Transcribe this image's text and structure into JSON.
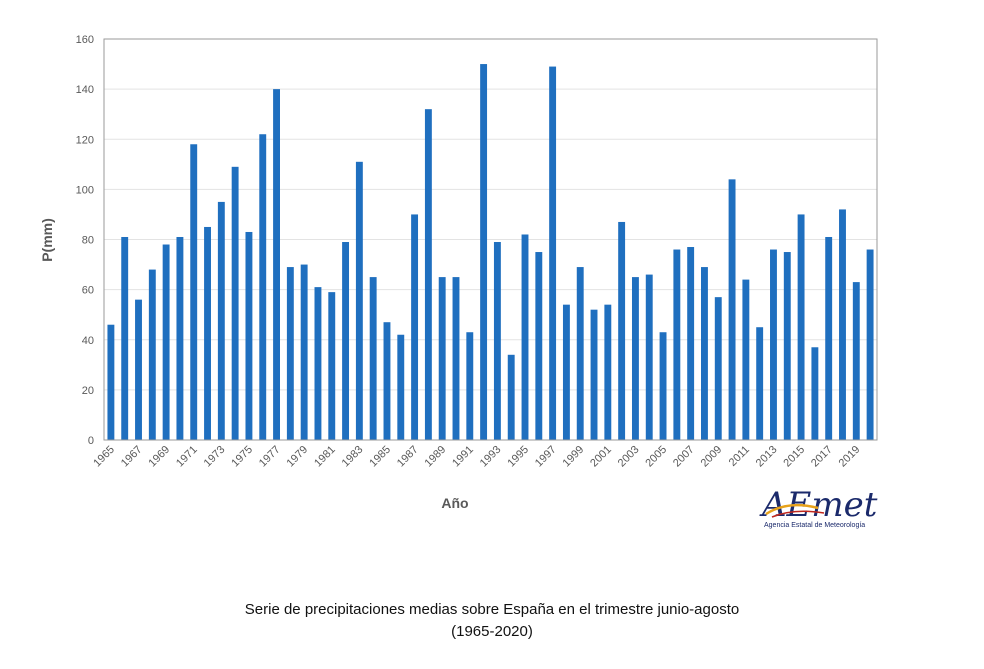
{
  "chart_data": {
    "type": "bar",
    "title": "",
    "xlabel": "Año",
    "ylabel": "P(mm)",
    "ylim": [
      0,
      160
    ],
    "yticks": [
      0,
      20,
      40,
      60,
      80,
      100,
      120,
      140,
      160
    ],
    "grid": true,
    "bar_color": "#1f6fbf",
    "categories": [
      "1965",
      "1966",
      "1967",
      "1968",
      "1969",
      "1970",
      "1971",
      "1972",
      "1973",
      "1974",
      "1975",
      "1976",
      "1977",
      "1978",
      "1979",
      "1980",
      "1981",
      "1982",
      "1983",
      "1984",
      "1985",
      "1986",
      "1987",
      "1988",
      "1989",
      "1990",
      "1991",
      "1992",
      "1993",
      "1994",
      "1995",
      "1996",
      "1997",
      "1998",
      "1999",
      "2000",
      "2001",
      "2002",
      "2003",
      "2004",
      "2005",
      "2006",
      "2007",
      "2008",
      "2009",
      "2010",
      "2011",
      "2012",
      "2013",
      "2014",
      "2015",
      "2016",
      "2017",
      "2018",
      "2019",
      "2020"
    ],
    "tick_labels": [
      "1965",
      "1967",
      "1969",
      "1971",
      "1973",
      "1975",
      "1977",
      "1979",
      "1981",
      "1983",
      "1985",
      "1987",
      "1989",
      "1991",
      "1993",
      "1995",
      "1997",
      "1999",
      "2001",
      "2003",
      "2005",
      "2007",
      "2009",
      "2011",
      "2013",
      "2015",
      "2017",
      "2019"
    ],
    "values": [
      46,
      81,
      56,
      68,
      78,
      81,
      118,
      85,
      95,
      109,
      83,
      122,
      140,
      69,
      70,
      61,
      59,
      79,
      111,
      65,
      47,
      42,
      90,
      132,
      65,
      65,
      43,
      150,
      79,
      34,
      82,
      75,
      149,
      54,
      69,
      52,
      54,
      87,
      65,
      66,
      43,
      76,
      77,
      69,
      57,
      104,
      64,
      45,
      76,
      75,
      90,
      37,
      81,
      92,
      63,
      76
    ]
  },
  "caption": {
    "line1": "Serie de precipitaciones medias sobre España en el trimestre junio-agosto",
    "line2": "(1965-2020)"
  },
  "logo": {
    "text": "AEmet",
    "subtitle": "Agencia Estatal de Meteorología",
    "colors": {
      "primary": "#1b2a6b",
      "accent": "#e8a21a",
      "red": "#c0281e"
    }
  }
}
